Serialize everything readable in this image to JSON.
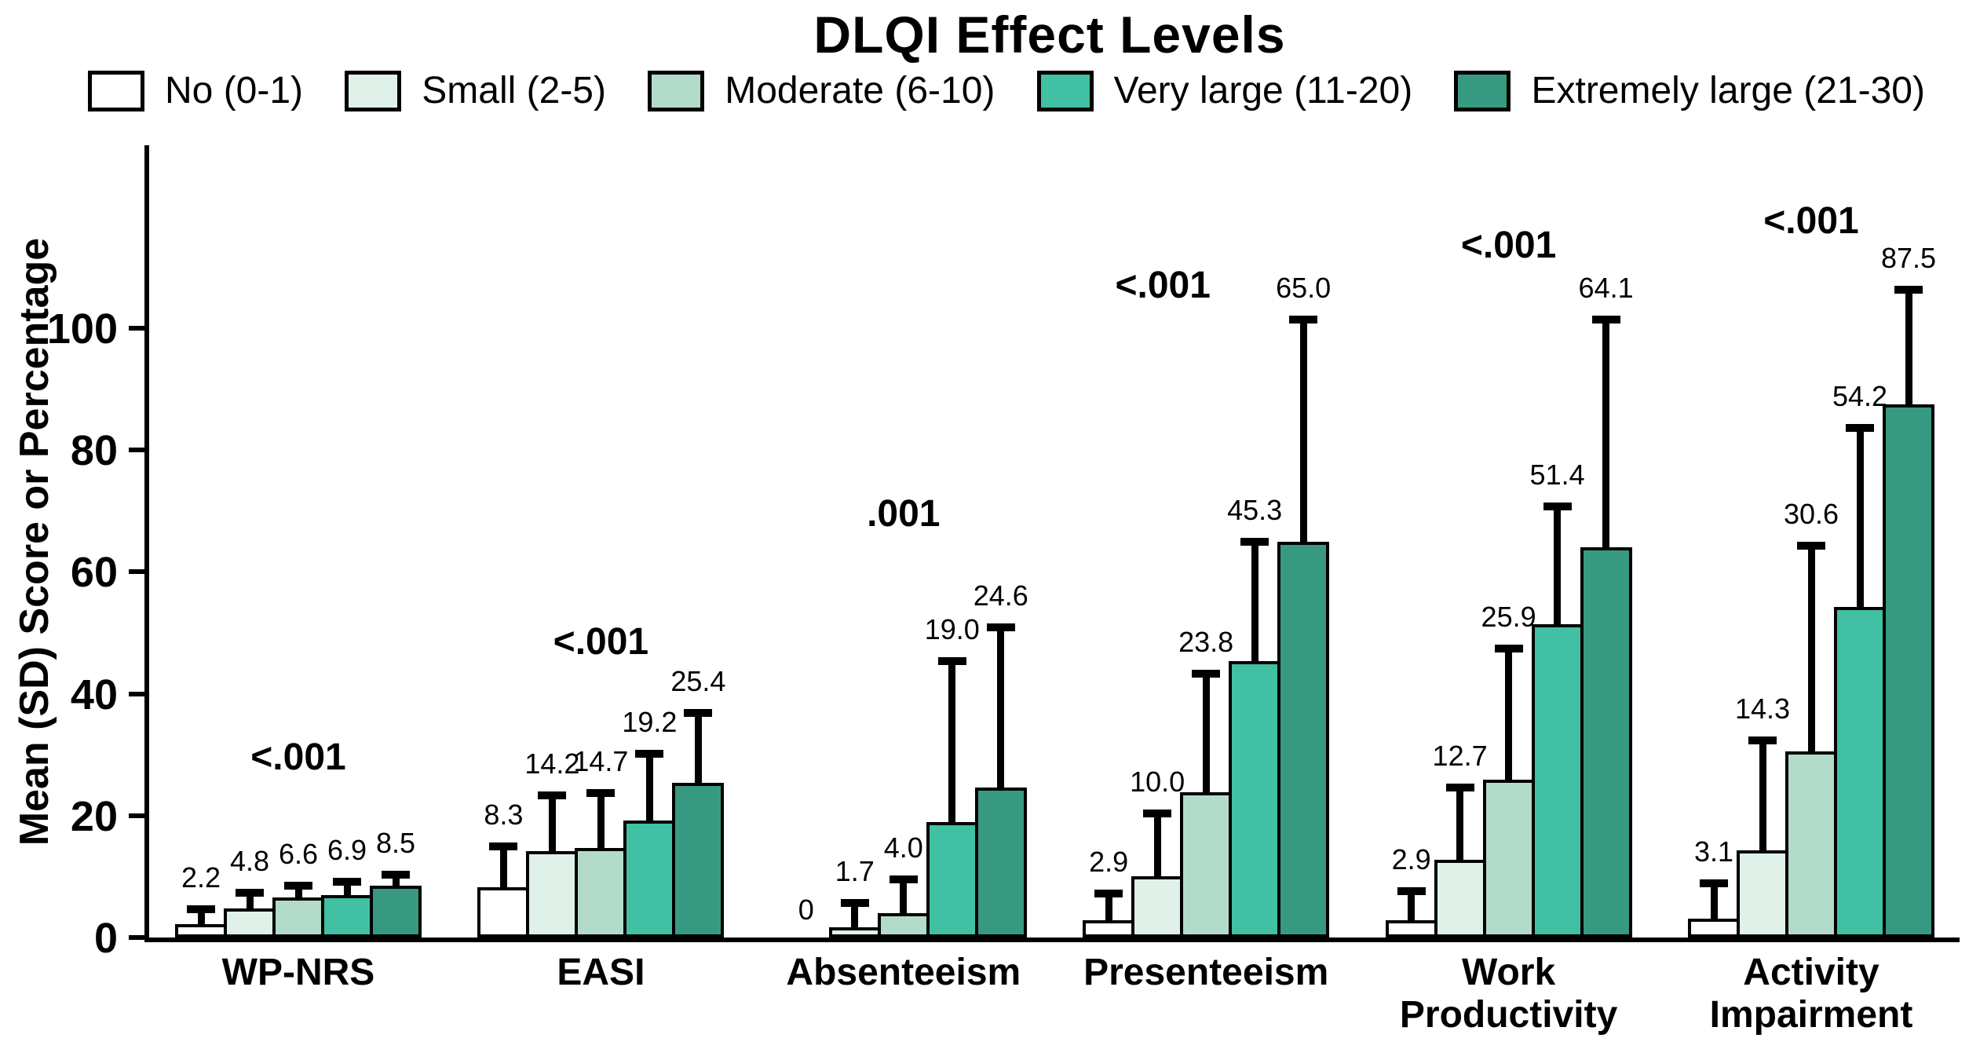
{
  "title": "DLQI Effect Levels",
  "y_axis": {
    "label": "Mean (SD) Score or Percentage"
  },
  "legend": [
    {
      "label": "No (0-1)",
      "color": "#ffffff"
    },
    {
      "label": "Small (2-5)",
      "color": "#dff1e9"
    },
    {
      "label": "Moderate (6-10)",
      "color": "#b2dcc9"
    },
    {
      "label": "Very large (11-20)",
      "color": "#41c0a3"
    },
    {
      "label": "Extremely large (21-30)",
      "color": "#379a80"
    }
  ],
  "chart_data": {
    "type": "bar",
    "title": "DLQI Effect Levels",
    "ylabel": "Mean (SD) Score or Percentage",
    "ylim": [
      0,
      130
    ],
    "yticks": [
      0,
      20,
      40,
      60,
      80,
      100
    ],
    "grid": false,
    "legend_position": "top",
    "error_bars": "upper SD whiskers",
    "series_names": [
      "No (0-1)",
      "Small (2-5)",
      "Moderate (6-10)",
      "Very large (11-20)",
      "Extremely large (21-30)"
    ],
    "series_colors": [
      "#ffffff",
      "#dff1e9",
      "#b2dcc9",
      "#41c0a3",
      "#379a80"
    ],
    "categories": [
      "WP-NRS",
      "EASI",
      "Absenteeism",
      "Presenteeism",
      "Work Productivity",
      "Activity Impairment"
    ],
    "groups": [
      {
        "category": "WP-NRS",
        "label_lines": [
          "WP-NRS"
        ],
        "p_value": "<.001",
        "p_label_y": 26,
        "bars": [
          {
            "value": 2.2,
            "label": "2.2",
            "error_top": 5.3
          },
          {
            "value": 4.8,
            "label": "4.8",
            "error_top": 8.0
          },
          {
            "value": 6.6,
            "label": "6.6",
            "error_top": 9.2
          },
          {
            "value": 6.9,
            "label": "6.9",
            "error_top": 9.8
          },
          {
            "value": 8.5,
            "label": "8.5",
            "error_top": 10.9
          }
        ]
      },
      {
        "category": "EASI",
        "label_lines": [
          "EASI"
        ],
        "p_value": "<.001",
        "p_label_y": 45,
        "bars": [
          {
            "value": 8.3,
            "label": "8.3",
            "error_top": 15.6
          },
          {
            "value": 14.2,
            "label": "14.2",
            "error_top": 24.0
          },
          {
            "value": 14.7,
            "label": "14.7",
            "error_top": 24.4
          },
          {
            "value": 19.2,
            "label": "19.2",
            "error_top": 30.8
          },
          {
            "value": 25.4,
            "label": "25.4",
            "error_top": 37.5
          }
        ]
      },
      {
        "category": "Absenteeism",
        "label_lines": [
          "Absenteeism"
        ],
        "p_value": ".001",
        "p_label_y": 66,
        "bars": [
          {
            "value": 0,
            "label": "0",
            "error_top": null
          },
          {
            "value": 1.7,
            "label": "1.7",
            "error_top": 6.3
          },
          {
            "value": 4.0,
            "label": "4.0",
            "error_top": 10.2
          },
          {
            "value": 19.0,
            "label": "19.0",
            "error_top": 46.0
          },
          {
            "value": 24.6,
            "label": "24.6",
            "error_top": 51.5
          }
        ]
      },
      {
        "category": "Presenteeism",
        "label_lines": [
          "Presenteeism"
        ],
        "p_value": "<.001",
        "p_label_y": 103.5,
        "bars": [
          {
            "value": 2.9,
            "label": "2.9",
            "error_top": 7.9
          },
          {
            "value": 10.0,
            "label": "10.0",
            "error_top": 21.0
          },
          {
            "value": 23.8,
            "label": "23.8",
            "error_top": 44.0
          },
          {
            "value": 45.3,
            "label": "45.3",
            "error_top": 65.6
          },
          {
            "value": 65.0,
            "label": "65.0",
            "error_top": 102.0
          }
        ]
      },
      {
        "category": "Work Productivity",
        "label_lines": [
          "Work",
          "Productivity"
        ],
        "p_value": "<.001",
        "p_label_y": 110,
        "bars": [
          {
            "value": 2.9,
            "label": "2.9",
            "error_top": 8.2
          },
          {
            "value": 12.7,
            "label": "12.7",
            "error_top": 25.3
          },
          {
            "value": 25.9,
            "label": "25.9",
            "error_top": 48.0
          },
          {
            "value": 51.4,
            "label": "51.4",
            "error_top": 71.4
          },
          {
            "value": 64.1,
            "label": "64.1",
            "error_top": 102.0
          }
        ]
      },
      {
        "category": "Activity Impairment",
        "label_lines": [
          "Activity",
          "Impairment"
        ],
        "p_value": "<.001",
        "p_label_y": 114,
        "bars": [
          {
            "value": 3.1,
            "label": "3.1",
            "error_top": 9.5
          },
          {
            "value": 14.3,
            "label": "14.3",
            "error_top": 33.0
          },
          {
            "value": 30.6,
            "label": "30.6",
            "error_top": 65.0
          },
          {
            "value": 54.2,
            "label": "54.2",
            "error_top": 84.3
          },
          {
            "value": 87.5,
            "label": "87.5",
            "error_top": 107.0
          }
        ]
      }
    ]
  }
}
